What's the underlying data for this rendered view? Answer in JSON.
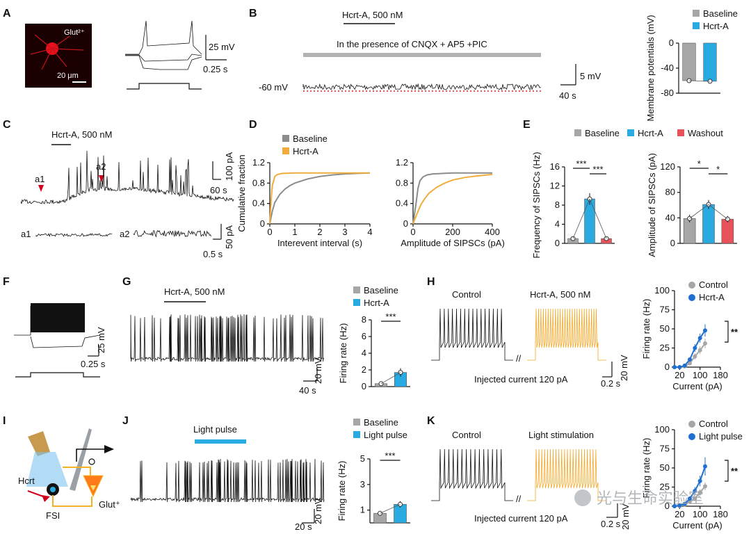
{
  "panels": {
    "A": {
      "letter": "A",
      "cell_label": "Glut²⁺",
      "scale_label": "20 μm",
      "v_scale": "25 mV",
      "t_scale": "0.25 s"
    },
    "B": {
      "letter": "B",
      "drug_label": "Hcrt-A, 500 nM",
      "presence_label": "In the presence of CNQX + AP5 +PIC",
      "baseline_v": "-60 mV",
      "v_scale": "5 mV",
      "t_scale": "40 s"
    },
    "C": {
      "letter": "C",
      "drug_label": "Hcrt-A, 500 nM",
      "marker1": "a1",
      "marker2": "a2",
      "i_scale": "100 pA",
      "t_scale": "60 s",
      "i_scale2": "50 pA",
      "t_scale2": "0.5 s",
      "inset1": "a1",
      "inset2": "a2"
    },
    "D": {
      "letter": "D"
    },
    "E": {
      "letter": "E"
    },
    "F": {
      "letter": "F",
      "v_scale": "25 mV",
      "t_scale": "0.25 s"
    },
    "G": {
      "letter": "G",
      "drug_label": "Hcrt-A, 500 nM",
      "v_scale": "20 mV",
      "t_scale": "40 s"
    },
    "H": {
      "letter": "H",
      "control_label": "Control",
      "drug_label": "Hcrt-A, 500 nM",
      "injected": "Injected current 120 pA",
      "v_scale": "20 mV",
      "t_scale": "0.2 s"
    },
    "I": {
      "letter": "I",
      "hcrt": "Hcrt",
      "fsi": "FSI",
      "glut": "Glut⁺"
    },
    "J": {
      "letter": "J",
      "light_label": "Light pulse",
      "v_scale": "20 mV",
      "t_scale": "20 s"
    },
    "K": {
      "letter": "K",
      "control_label": "Control",
      "light_label": "Light stimulation",
      "injected": "Injected current 120 pA",
      "v_scale": "20 mV",
      "t_scale": "0.2 s"
    }
  },
  "watermark": "光与生命实验室",
  "chart_data": [
    {
      "id": "B-bar",
      "type": "bar",
      "ylabel": "Membrane potentials (mV)",
      "ylim": [
        -80,
        0
      ],
      "yticks": [
        0,
        -40,
        -80
      ],
      "legend": [
        "Baseline",
        "Hcrt-A"
      ],
      "categories": [
        "Baseline",
        "Hcrt-A"
      ],
      "values": [
        -60,
        -61
      ],
      "colors": [
        "#a6a6a6",
        "#29abe2"
      ]
    },
    {
      "id": "D-left",
      "type": "line",
      "xlabel": "Interevent interval (s)",
      "ylabel": "Cumulative fraction",
      "xlim": [
        0,
        4
      ],
      "ylim": [
        0,
        1.2
      ],
      "xticks": [
        0,
        1,
        2,
        3,
        4
      ],
      "yticks": [
        0,
        0.4,
        0.8,
        1.2
      ],
      "legend": [
        "Baseline",
        "Hcrt-A"
      ],
      "series": [
        {
          "name": "Baseline",
          "color": "#8c8c8c",
          "x": [
            0,
            0.1,
            0.2,
            0.4,
            0.6,
            0.8,
            1.0,
            1.5,
            2.0,
            2.5,
            3.0,
            3.5,
            4.0
          ],
          "y": [
            0,
            0.25,
            0.42,
            0.58,
            0.68,
            0.75,
            0.8,
            0.88,
            0.93,
            0.96,
            0.98,
            0.99,
            1.0
          ]
        },
        {
          "name": "Hcrt-A",
          "color": "#f0ad3c",
          "x": [
            0,
            0.05,
            0.1,
            0.2,
            0.3,
            0.5,
            1.0,
            4.0
          ],
          "y": [
            0,
            0.45,
            0.75,
            0.93,
            0.97,
            0.99,
            1.0,
            1.0
          ]
        }
      ]
    },
    {
      "id": "D-right",
      "type": "line",
      "xlabel": "Amplitude of SIPSCs (pA)",
      "xlim": [
        0,
        400
      ],
      "ylim": [
        0,
        1.2
      ],
      "xticks": [
        0,
        200,
        400
      ],
      "yticks": [
        0,
        0.4,
        0.8,
        1.2
      ],
      "series": [
        {
          "name": "Baseline",
          "color": "#8c8c8c",
          "x": [
            0,
            15,
            25,
            35,
            50,
            70,
            100,
            150,
            200,
            400
          ],
          "y": [
            0,
            0.4,
            0.7,
            0.85,
            0.92,
            0.96,
            0.98,
            0.99,
            1.0,
            1.0
          ]
        },
        {
          "name": "Hcrt-A",
          "color": "#f0ad3c",
          "x": [
            0,
            20,
            40,
            60,
            80,
            120,
            160,
            200,
            260,
            320,
            400
          ],
          "y": [
            0,
            0.2,
            0.38,
            0.5,
            0.6,
            0.72,
            0.8,
            0.86,
            0.91,
            0.94,
            0.97
          ]
        }
      ]
    },
    {
      "id": "E-freq",
      "type": "bar",
      "ylabel": "Frequency of SIPSCs (Hz)",
      "ylim": [
        0,
        16
      ],
      "yticks": [
        0,
        4,
        8,
        12,
        16
      ],
      "legend": [
        "Baseline",
        "Hcrt-A",
        "Washout"
      ],
      "categories": [
        "Baseline",
        "Hcrt-A",
        "Washout"
      ],
      "values": [
        1,
        9.3,
        1
      ],
      "errors": [
        0.3,
        1.2,
        0.3
      ],
      "colors": [
        "#a6a6a6",
        "#29abe2",
        "#e8535b"
      ],
      "sig": [
        "***",
        "***"
      ]
    },
    {
      "id": "E-amp",
      "type": "bar",
      "ylabel": "Amplitude of SIPSCs (pA)",
      "ylim": [
        0,
        120
      ],
      "yticks": [
        0,
        40,
        80,
        120
      ],
      "categories": [
        "Baseline",
        "Hcrt-A",
        "Washout"
      ],
      "values": [
        39,
        61,
        38
      ],
      "errors": [
        6,
        7,
        5
      ],
      "colors": [
        "#a6a6a6",
        "#29abe2",
        "#e8535b"
      ],
      "sig": [
        "*",
        "*"
      ]
    },
    {
      "id": "G-bar",
      "type": "bar",
      "ylabel": "Firing rate (Hz)",
      "ylim": [
        0,
        8
      ],
      "yticks": [
        0,
        2,
        4,
        6,
        8
      ],
      "legend": [
        "Baseline",
        "Hcrt-A"
      ],
      "categories": [
        "Baseline",
        "Hcrt-A"
      ],
      "values": [
        0.35,
        1.7
      ],
      "errors": [
        0.1,
        0.5
      ],
      "colors": [
        "#a6a6a6",
        "#29abe2"
      ],
      "sig": [
        "***"
      ]
    },
    {
      "id": "H-line",
      "type": "line",
      "xlabel": "Current (pA)",
      "ylabel": "Firing rate (Hz)",
      "xlim": [
        0,
        180
      ],
      "ylim": [
        0,
        100
      ],
      "xticks": [
        20,
        100,
        180
      ],
      "yticks": [
        0,
        25,
        50,
        75,
        100
      ],
      "legend": [
        "Control",
        "Hcrt-A"
      ],
      "sig": [
        "**"
      ],
      "series": [
        {
          "name": "Control",
          "color": "#a6a6a6",
          "x": [
            0,
            20,
            40,
            60,
            80,
            100,
            120
          ],
          "y": [
            0,
            0,
            1,
            5,
            14,
            22,
            31
          ],
          "err": [
            0,
            0,
            1,
            2,
            4,
            5,
            6
          ]
        },
        {
          "name": "Hcrt-A",
          "color": "#1f6fd1",
          "x": [
            0,
            20,
            40,
            60,
            80,
            100,
            120
          ],
          "y": [
            0,
            0,
            2,
            10,
            25,
            38,
            48
          ],
          "err": [
            0,
            0,
            1,
            3,
            5,
            6,
            8
          ]
        }
      ]
    },
    {
      "id": "J-bar",
      "type": "bar",
      "ylabel": "Firing rate (Hz)",
      "ylim": [
        0,
        5
      ],
      "yticks": [
        1,
        3,
        5
      ],
      "legend": [
        "Baseline",
        "Light pulse"
      ],
      "categories": [
        "Baseline",
        "Light pulse"
      ],
      "values": [
        0.75,
        1.45
      ],
      "errors": [
        0.08,
        0.25
      ],
      "colors": [
        "#a6a6a6",
        "#29abe2"
      ],
      "sig": [
        "***"
      ]
    },
    {
      "id": "K-line",
      "type": "line",
      "xlabel": "Current (pA)",
      "ylabel": "Firing rate (Hz)",
      "xlim": [
        0,
        180
      ],
      "ylim": [
        0,
        100
      ],
      "xticks": [
        20,
        100,
        180
      ],
      "yticks": [
        0,
        25,
        50,
        75,
        100
      ],
      "legend": [
        "Control",
        "Light pulse"
      ],
      "sig": [
        "**"
      ],
      "series": [
        {
          "name": "Control",
          "color": "#a6a6a6",
          "x": [
            0,
            20,
            40,
            60,
            80,
            100,
            120
          ],
          "y": [
            0,
            0,
            2,
            6,
            10,
            18,
            26
          ],
          "err": [
            0,
            0,
            1,
            2,
            3,
            4,
            5
          ]
        },
        {
          "name": "Light pulse",
          "color": "#1f6fd1",
          "x": [
            0,
            20,
            40,
            60,
            80,
            100,
            120
          ],
          "y": [
            0,
            1,
            3,
            10,
            20,
            33,
            52
          ],
          "err": [
            0,
            0,
            1,
            3,
            5,
            7,
            12
          ]
        }
      ]
    }
  ]
}
